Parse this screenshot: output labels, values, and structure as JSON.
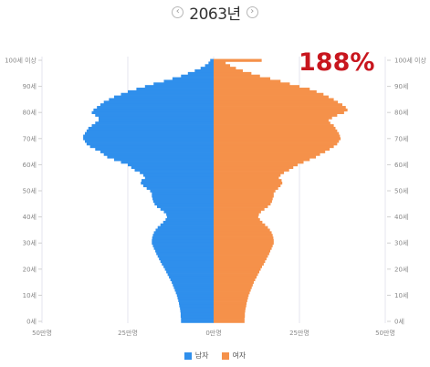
{
  "header": {
    "year": "2063년",
    "prev_icon": "chevron-left-icon",
    "next_icon": "chevron-right-icon"
  },
  "annotation": "188%",
  "colors": {
    "male": "#2f8fec",
    "female": "#f5914a",
    "annotation": "#c8161e"
  },
  "chart_data": {
    "type": "bar",
    "orientation": "horizontal",
    "layout": "population-pyramid",
    "y_tick_labels_left": [
      "100세 이상",
      "90세",
      "80세",
      "70세",
      "60세",
      "50세",
      "40세",
      "30세",
      "20세",
      "10세",
      "0세"
    ],
    "y_tick_labels_right": [
      "100세 이상",
      "90세",
      "80세",
      "70세",
      "60세",
      "50세",
      "40세",
      "30세",
      "20세",
      "10세",
      "0세"
    ],
    "x_tick_labels": [
      "50만명",
      "25만명",
      "0만명",
      "25만명",
      "50만명"
    ],
    "xlim": [
      -500000,
      500000
    ],
    "ylim": [
      0,
      100
    ],
    "grid": true,
    "legend": {
      "position": "bottom",
      "entries": [
        "남자",
        "여자"
      ]
    },
    "ages": [
      0,
      1,
      2,
      3,
      4,
      5,
      6,
      7,
      8,
      9,
      10,
      11,
      12,
      13,
      14,
      15,
      16,
      17,
      18,
      19,
      20,
      21,
      22,
      23,
      24,
      25,
      26,
      27,
      28,
      29,
      30,
      31,
      32,
      33,
      34,
      35,
      36,
      37,
      38,
      39,
      40,
      41,
      42,
      43,
      44,
      45,
      46,
      47,
      48,
      49,
      50,
      51,
      52,
      53,
      54,
      55,
      56,
      57,
      58,
      59,
      60,
      61,
      62,
      63,
      64,
      65,
      66,
      67,
      68,
      69,
      70,
      71,
      72,
      73,
      74,
      75,
      76,
      77,
      78,
      79,
      80,
      81,
      82,
      83,
      84,
      85,
      86,
      87,
      88,
      89,
      90,
      91,
      92,
      93,
      94,
      95,
      96,
      97,
      98,
      99,
      100
    ],
    "series": [
      {
        "name": "남자",
        "values": [
          95000,
          95000,
          96000,
          96000,
          97000,
          98000,
          100000,
          101000,
          103000,
          105000,
          107000,
          110000,
          113000,
          116000,
          119000,
          122000,
          126000,
          130000,
          134000,
          138000,
          142000,
          146000,
          151000,
          155000,
          159000,
          163000,
          167000,
          170000,
          174000,
          177000,
          180000,
          180000,
          179000,
          177000,
          174000,
          169000,
          163000,
          155000,
          147000,
          140000,
          136000,
          138000,
          145000,
          155000,
          165000,
          172000,
          176000,
          178000,
          180000,
          180000,
          185000,
          195000,
          205000,
          212000,
          210000,
          200000,
          205000,
          215000,
          230000,
          240000,
          250000,
          270000,
          290000,
          310000,
          320000,
          330000,
          345000,
          360000,
          370000,
          375000,
          380000,
          380000,
          375000,
          370000,
          365000,
          355000,
          345000,
          335000,
          335000,
          345000,
          355000,
          350000,
          340000,
          330000,
          320000,
          305000,
          290000,
          270000,
          250000,
          225000,
          200000,
          175000,
          145000,
          120000,
          95000,
          75000,
          55000,
          38000,
          25000,
          15000,
          10000
        ]
      },
      {
        "name": "여자",
        "values": [
          90000,
          90000,
          91000,
          91000,
          92000,
          93000,
          95000,
          96000,
          98000,
          100000,
          102000,
          105000,
          108000,
          111000,
          114000,
          117000,
          121000,
          125000,
          129000,
          133000,
          137000,
          141000,
          146000,
          150000,
          154000,
          158000,
          162000,
          165000,
          169000,
          172000,
          175000,
          175000,
          174000,
          172000,
          169000,
          164000,
          158000,
          150000,
          142000,
          135000,
          130000,
          132000,
          138000,
          148000,
          158000,
          166000,
          170000,
          172000,
          175000,
          175000,
          180000,
          188000,
          195000,
          200000,
          198000,
          190000,
          195000,
          205000,
          220000,
          232000,
          245000,
          262000,
          280000,
          298000,
          310000,
          325000,
          338000,
          350000,
          360000,
          365000,
          370000,
          368000,
          365000,
          360000,
          355000,
          350000,
          340000,
          335000,
          345000,
          360000,
          380000,
          390000,
          385000,
          375000,
          362000,
          350000,
          335000,
          320000,
          300000,
          280000,
          250000,
          222000,
          195000,
          165000,
          135000,
          110000,
          85000,
          65000,
          48000,
          35000,
          140000
        ]
      }
    ]
  }
}
